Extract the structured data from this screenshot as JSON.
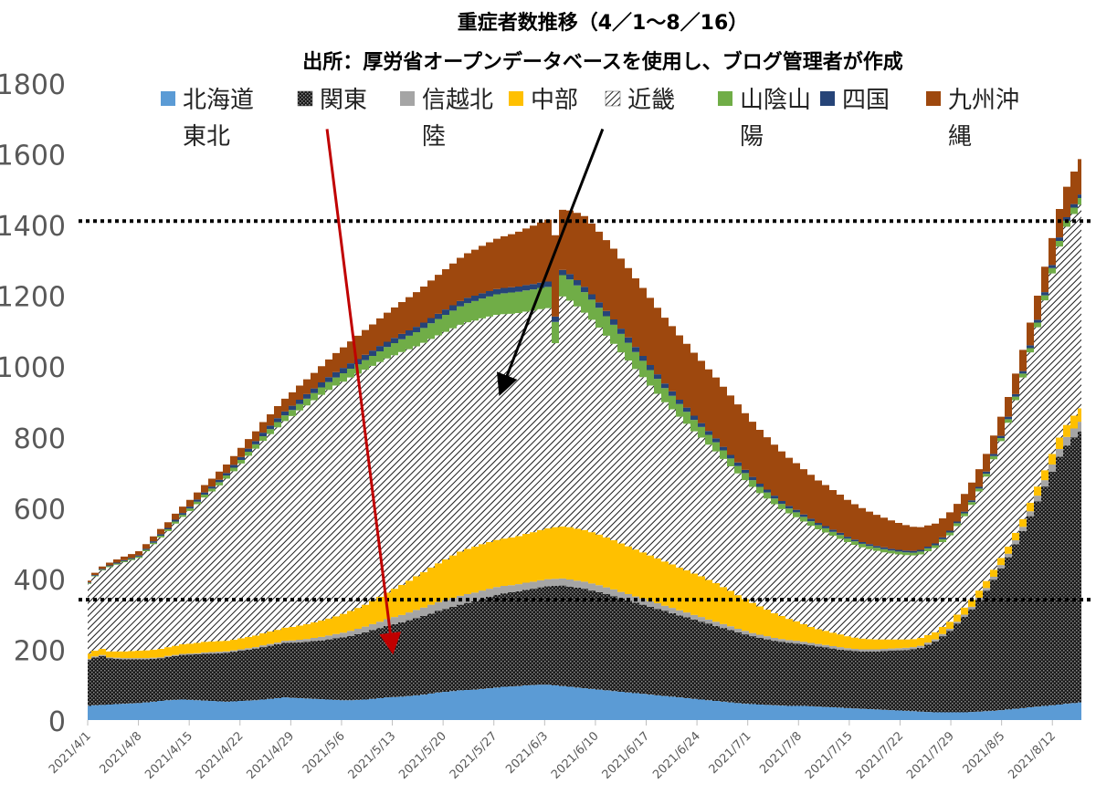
{
  "chart_data": {
    "type": "area",
    "stacked": true,
    "title": "重症者数推移（4／1～8／16）",
    "subtitle": "出所：厚労省オープンデータベースを使用し、ブログ管理者が作成",
    "ylim": [
      0,
      1800
    ],
    "yticks": [
      "0",
      "200",
      "400",
      "600",
      "800",
      "1000",
      "1200",
      "1400",
      "1600",
      "1800"
    ],
    "x_tick_labels": [
      "2021/4/1",
      "2021/4/8",
      "2021/4/15",
      "2021/4/22",
      "2021/4/29",
      "2021/5/6",
      "2021/5/13",
      "2021/5/20",
      "2021/5/27",
      "2021/6/3",
      "2021/6/10",
      "2021/6/17",
      "2021/6/24",
      "2021/7/1",
      "2021/7/8",
      "2021/7/15",
      "2021/7/22",
      "2021/7/29",
      "2021/8/5",
      "2021/8/12"
    ],
    "x_start": "2021/4/1",
    "x_end": "2021/8/16",
    "grid": false,
    "legend_position": "top",
    "series": [
      {
        "name": "北海道東北",
        "color": "#5b9bd5",
        "values": [
          40,
          42,
          43,
          44,
          45,
          46,
          47,
          48,
          50,
          52,
          54,
          56,
          57,
          58,
          57,
          56,
          55,
          54,
          53,
          52,
          53,
          54,
          55,
          56,
          58,
          60,
          62,
          64,
          63,
          62,
          61,
          60,
          59,
          58,
          57,
          56,
          56,
          57,
          58,
          60,
          62,
          64,
          65,
          66,
          68,
          70,
          72,
          75,
          78,
          80,
          82,
          84,
          85,
          86,
          88,
          90,
          92,
          94,
          95,
          96,
          98,
          99,
          100,
          100,
          98,
          96,
          94,
          92,
          90,
          88,
          86,
          84,
          82,
          80,
          78,
          76,
          74,
          72,
          70,
          68,
          66,
          64,
          62,
          60,
          58,
          56,
          54,
          52,
          50,
          48,
          46,
          45,
          44,
          43,
          42,
          41,
          40,
          40,
          40,
          39,
          38,
          37,
          36,
          35,
          34,
          33,
          32,
          31,
          30,
          29,
          28,
          27,
          26,
          25,
          24,
          23,
          22,
          22,
          22,
          22,
          22,
          23,
          24,
          25,
          26,
          28,
          30,
          32,
          34,
          36,
          38,
          40,
          42,
          44,
          46,
          48,
          50
        ]
      },
      {
        "name": "関東",
        "color": "#1f1f1f",
        "pattern": "dots",
        "values": [
          130,
          135,
          138,
          130,
          128,
          126,
          125,
          124,
          122,
          121,
          120,
          122,
          124,
          126,
          128,
          130,
          132,
          134,
          136,
          138,
          140,
          142,
          144,
          146,
          148,
          150,
          152,
          154,
          156,
          158,
          160,
          163,
          166,
          170,
          174,
          178,
          182,
          186,
          190,
          194,
          198,
          202,
          206,
          210,
          214,
          218,
          222,
          226,
          230,
          234,
          238,
          242,
          246,
          250,
          254,
          258,
          262,
          264,
          266,
          268,
          270,
          272,
          275,
          278,
          281,
          284,
          283,
          282,
          281,
          278,
          275,
          272,
          268,
          264,
          260,
          256,
          252,
          248,
          244,
          240,
          236,
          232,
          228,
          224,
          220,
          216,
          212,
          208,
          204,
          200,
          196,
          192,
          188,
          185,
          182,
          180,
          178,
          176,
          174,
          172,
          170,
          168,
          166,
          164,
          163,
          162,
          162,
          163,
          164,
          166,
          168,
          170,
          172,
          175,
          180,
          190,
          200,
          215,
          230,
          250,
          270,
          290,
          315,
          340,
          370,
          400,
          430,
          465,
          500,
          540,
          580,
          620,
          660,
          700,
          730,
          750,
          765
        ]
      },
      {
        "name": "信越北陸",
        "color": "#a5a5a5",
        "values": [
          3,
          3,
          3,
          3,
          3,
          3,
          3,
          3,
          3,
          3,
          3,
          3,
          3,
          3,
          3,
          3,
          4,
          4,
          4,
          4,
          4,
          4,
          4,
          4,
          5,
          5,
          5,
          6,
          6,
          7,
          8,
          9,
          10,
          11,
          12,
          13,
          14,
          15,
          16,
          17,
          18,
          19,
          20,
          21,
          22,
          23,
          24,
          25,
          25,
          25,
          25,
          25,
          25,
          24,
          24,
          23,
          22,
          21,
          20,
          20,
          20,
          20,
          20,
          20,
          20,
          20,
          20,
          20,
          20,
          20,
          20,
          19,
          19,
          18,
          18,
          17,
          17,
          16,
          16,
          15,
          15,
          14,
          14,
          13,
          13,
          12,
          12,
          11,
          11,
          10,
          10,
          9,
          9,
          9,
          8,
          8,
          8,
          8,
          7,
          7,
          7,
          7,
          7,
          7,
          6,
          6,
          6,
          6,
          6,
          6,
          6,
          6,
          6,
          6,
          6,
          6,
          6,
          6,
          6,
          6,
          6,
          7,
          7,
          8,
          9,
          10,
          10,
          11,
          12,
          14,
          16,
          18,
          20,
          22,
          24,
          26,
          28
        ]
      },
      {
        "name": "中部",
        "color": "#ffc000",
        "values": [
          15,
          16,
          17,
          17,
          18,
          19,
          20,
          21,
          22,
          23,
          24,
          25,
          26,
          27,
          28,
          29,
          30,
          30,
          30,
          30,
          30,
          31,
          32,
          33,
          34,
          35,
          36,
          37,
          38,
          40,
          42,
          44,
          46,
          48,
          50,
          53,
          56,
          59,
          62,
          66,
          70,
          75,
          80,
          85,
          90,
          95,
          100,
          105,
          110,
          115,
          120,
          125,
          128,
          130,
          131,
          132,
          133,
          134,
          135,
          136,
          138,
          140,
          142,
          144,
          146,
          147,
          148,
          147,
          146,
          145,
          143,
          141,
          139,
          137,
          135,
          133,
          131,
          129,
          127,
          125,
          123,
          121,
          119,
          117,
          115,
          112,
          109,
          105,
          100,
          95,
          90,
          85,
          80,
          75,
          70,
          65,
          60,
          55,
          50,
          45,
          42,
          40,
          38,
          36,
          34,
          32,
          30,
          29,
          28,
          27,
          26,
          25,
          24,
          23,
          22,
          21,
          20,
          20,
          20,
          20,
          20,
          20,
          20,
          20,
          20,
          20,
          20,
          21,
          22,
          24,
          26,
          28,
          30,
          32,
          34,
          36,
          38
        ]
      },
      {
        "name": "近畿",
        "color": "#9a9a9a",
        "pattern": "hatch",
        "values": [
          197,
          210,
          222,
          238,
          245,
          252,
          257,
          262,
          280,
          298,
          315,
          328,
          345,
          360,
          375,
          392,
          408,
          424,
          440,
          458,
          476,
          494,
          512,
          528,
          544,
          558,
          572,
          584,
          596,
          608,
          618,
          628,
          638,
          646,
          652,
          656,
          660,
          662,
          664,
          664,
          664,
          662,
          660,
          658,
          654,
          650,
          648,
          646,
          644,
          643,
          642,
          641,
          640,
          639,
          638,
          637,
          636,
          634,
          632,
          630,
          628,
          626,
          624,
          622,
          520,
          650,
          640,
          628,
          614,
          600,
          585,
          570,
          555,
          540,
          525,
          510,
          495,
          480,
          465,
          450,
          438,
          426,
          414,
          402,
          392,
          382,
          372,
          362,
          352,
          344,
          336,
          328,
          320,
          314,
          308,
          302,
          298,
          294,
          290,
          286,
          282,
          278,
          274,
          270,
          266,
          262,
          258,
          254,
          250,
          246,
          243,
          240,
          238,
          236,
          236,
          237,
          238,
          240,
          244,
          250,
          258,
          268,
          280,
          295,
          312,
          330,
          350,
          375,
          400,
          425,
          450,
          480,
          510,
          540,
          560,
          570,
          575
        ]
      },
      {
        "name": "山陰山陽",
        "color": "#70ad47",
        "values": [
          2,
          2,
          2,
          3,
          3,
          3,
          3,
          4,
          4,
          4,
          5,
          5,
          6,
          6,
          7,
          7,
          8,
          8,
          9,
          9,
          10,
          10,
          11,
          12,
          13,
          14,
          15,
          16,
          17,
          18,
          19,
          20,
          21,
          22,
          23,
          24,
          25,
          26,
          27,
          28,
          30,
          32,
          34,
          36,
          38,
          40,
          42,
          44,
          46,
          48,
          50,
          52,
          54,
          55,
          56,
          57,
          58,
          59,
          60,
          60,
          60,
          60,
          60,
          60,
          60,
          60,
          60,
          59,
          58,
          57,
          56,
          55,
          54,
          52,
          50,
          48,
          46,
          44,
          42,
          40,
          38,
          36,
          34,
          32,
          30,
          28,
          26,
          24,
          22,
          21,
          20,
          19,
          18,
          17,
          16,
          15,
          14,
          14,
          13,
          13,
          12,
          12,
          11,
          11,
          10,
          10,
          10,
          9,
          9,
          9,
          8,
          8,
          8,
          8,
          8,
          8,
          8,
          8,
          8,
          8,
          8,
          8,
          8,
          8,
          9,
          9,
          10,
          10,
          11,
          12,
          13,
          14,
          15,
          16,
          17,
          18,
          19
        ]
      },
      {
        "name": "四国",
        "color": "#264478",
        "values": [
          2,
          2,
          2,
          2,
          3,
          3,
          3,
          3,
          3,
          4,
          4,
          4,
          5,
          5,
          5,
          6,
          6,
          6,
          7,
          7,
          8,
          8,
          9,
          9,
          10,
          10,
          11,
          11,
          12,
          12,
          13,
          13,
          14,
          14,
          15,
          15,
          15,
          15,
          15,
          15,
          15,
          15,
          15,
          15,
          15,
          15,
          15,
          15,
          15,
          15,
          15,
          15,
          15,
          15,
          15,
          15,
          15,
          15,
          15,
          15,
          15,
          15,
          15,
          15,
          15,
          15,
          15,
          15,
          15,
          15,
          15,
          15,
          15,
          15,
          15,
          14,
          14,
          14,
          13,
          13,
          13,
          12,
          12,
          12,
          11,
          11,
          11,
          10,
          10,
          10,
          9,
          9,
          9,
          8,
          8,
          8,
          7,
          7,
          7,
          7,
          6,
          6,
          6,
          6,
          5,
          5,
          5,
          5,
          5,
          5,
          5,
          5,
          5,
          5,
          5,
          5,
          5,
          5,
          5,
          5,
          5,
          5,
          5,
          6,
          6,
          6,
          7,
          7,
          7,
          8,
          8,
          9,
          9,
          10,
          10,
          10,
          10
        ]
      },
      {
        "name": "九州沖縄",
        "color": "#9e480e",
        "values": [
          5,
          6,
          7,
          8,
          9,
          10,
          11,
          12,
          13,
          14,
          15,
          16,
          17,
          18,
          19,
          20,
          21,
          22,
          23,
          24,
          25,
          26,
          27,
          28,
          30,
          32,
          34,
          36,
          38,
          40,
          42,
          44,
          46,
          50,
          54,
          58,
          62,
          66,
          70,
          74,
          78,
          82,
          86,
          90,
          94,
          98,
          102,
          106,
          110,
          114,
          118,
          122,
          126,
          130,
          134,
          138,
          142,
          146,
          150,
          155,
          160,
          165,
          170,
          175,
          230,
          170,
          180,
          190,
          200,
          200,
          200,
          200,
          200,
          198,
          196,
          194,
          192,
          190,
          188,
          186,
          184,
          182,
          180,
          178,
          176,
          174,
          172,
          170,
          168,
          164,
          160,
          156,
          152,
          148,
          144,
          140,
          136,
          132,
          128,
          124,
          120,
          116,
          112,
          108,
          104,
          100,
          96,
          92,
          88,
          84,
          80,
          76,
          72,
          68,
          64,
          60,
          56,
          54,
          52,
          50,
          50,
          50,
          50,
          50,
          52,
          54,
          56,
          58,
          60,
          64,
          68,
          72,
          76,
          80,
          86,
          92,
          100
        ]
      }
    ],
    "annotations": [
      {
        "type": "hline",
        "y": 1410,
        "style": "dotted"
      },
      {
        "type": "hline",
        "y": 340,
        "style": "dotted"
      },
      {
        "type": "arrow",
        "color": "#c00000",
        "from": {
          "x": "2021/5/4",
          "y": 1670
        },
        "to": {
          "x": "2021/5/13",
          "y": 200
        }
      },
      {
        "type": "arrow",
        "color": "#000000",
        "from": {
          "x": "2021/6/11",
          "y": 1670
        },
        "to": {
          "x": "2021/5/28",
          "y": 930
        }
      }
    ]
  }
}
